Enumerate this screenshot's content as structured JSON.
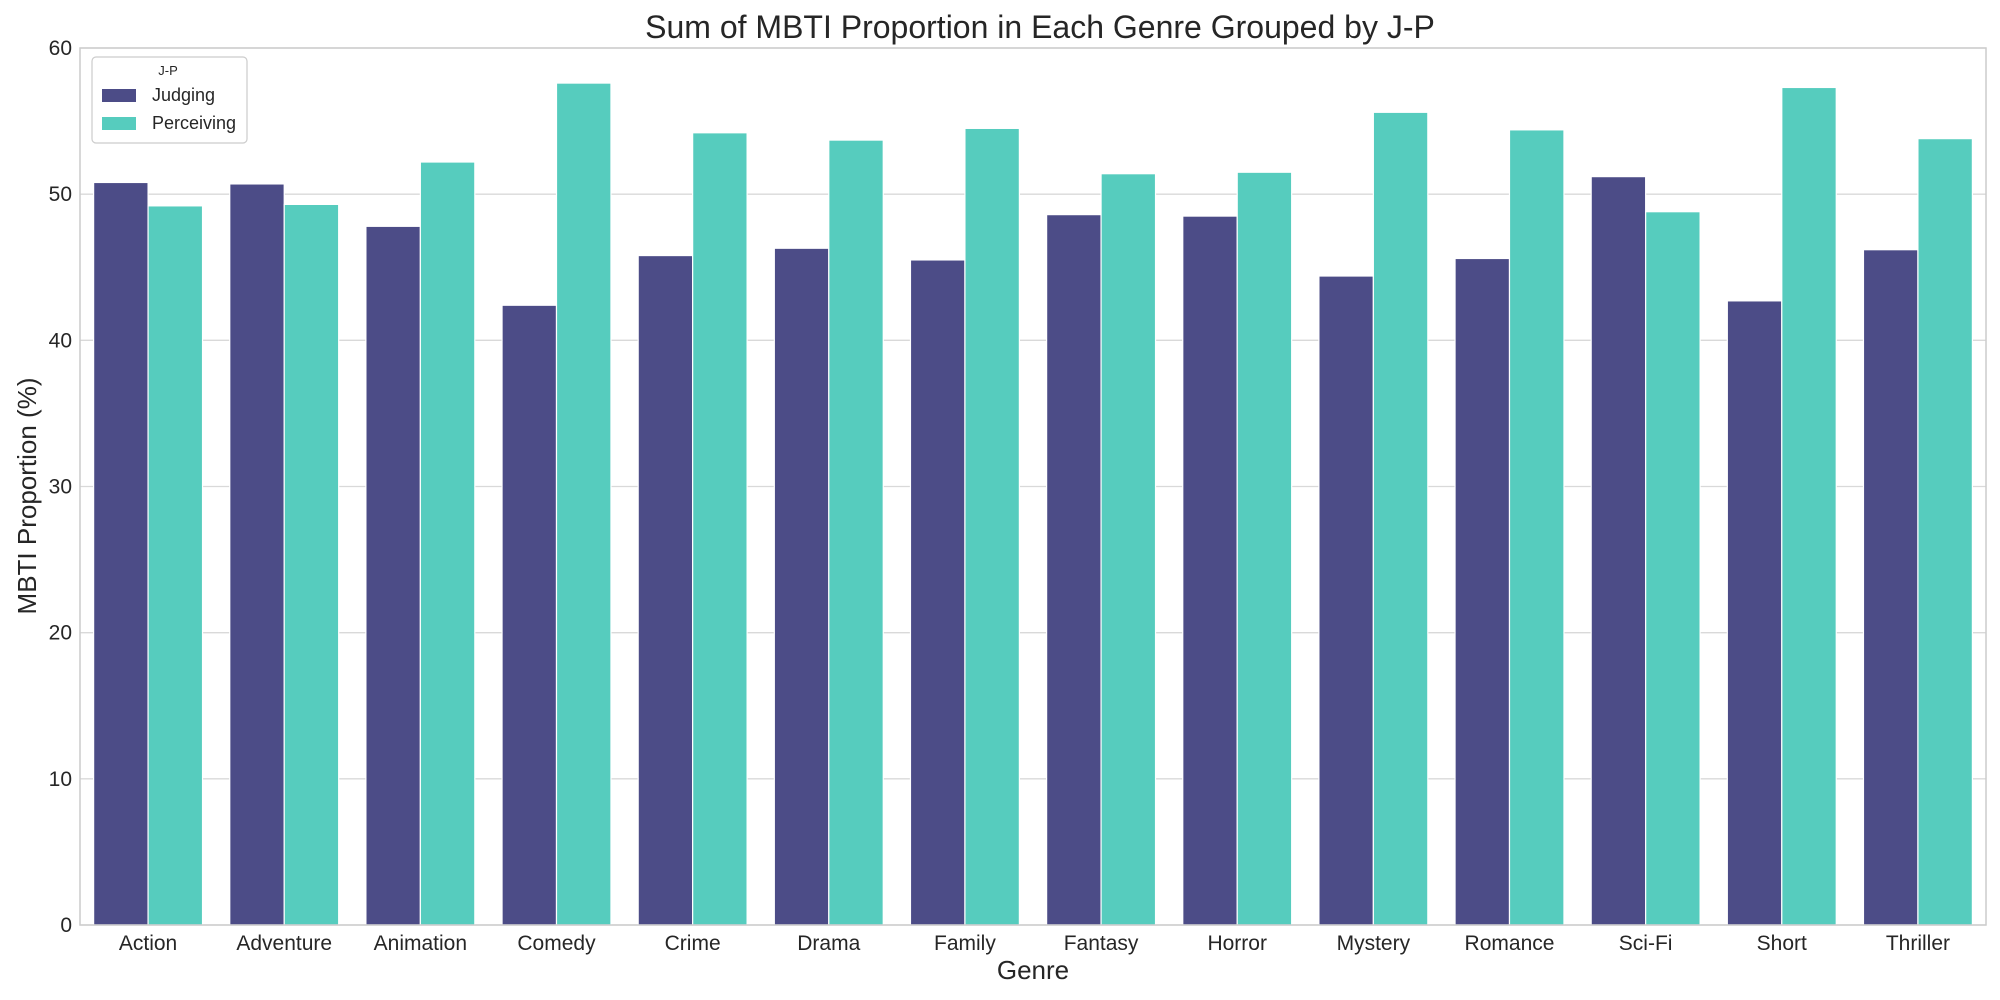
{
  "chart_data": {
    "type": "bar",
    "title": "Sum of MBTI Proportion in Each Genre Grouped by J-P",
    "xlabel": "Genre",
    "ylabel": "MBTI Proportion (%)",
    "ylim": [
      0,
      60
    ],
    "yticks": [
      0,
      10,
      20,
      30,
      40,
      50,
      60
    ],
    "grid": "horizontal",
    "legend": {
      "title": "J-P",
      "placement": "top-left"
    },
    "categories": [
      "Action",
      "Adventure",
      "Animation",
      "Comedy",
      "Crime",
      "Drama",
      "Family",
      "Fantasy",
      "Horror",
      "Mystery",
      "Romance",
      "Sci-Fi",
      "Short",
      "Thriller"
    ],
    "series": [
      {
        "name": "Judging",
        "color": "#4c4c87",
        "values": [
          50.8,
          50.7,
          47.8,
          42.4,
          45.8,
          46.3,
          45.5,
          48.6,
          48.5,
          44.4,
          45.6,
          51.2,
          42.7,
          46.2
        ]
      },
      {
        "name": "Perceiving",
        "color": "#56ccbe",
        "values": [
          49.2,
          49.3,
          52.2,
          57.6,
          54.2,
          53.7,
          54.5,
          51.4,
          51.5,
          55.6,
          54.4,
          48.8,
          57.3,
          53.8
        ]
      }
    ]
  }
}
